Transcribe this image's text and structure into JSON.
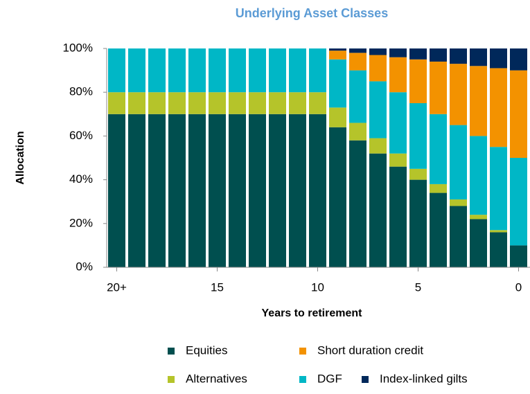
{
  "chart_data": {
    "type": "stacked_bar",
    "title": "Underlying Asset Classes",
    "x_label": "Years to retirement",
    "y_label": "Allocation",
    "categories": [
      "20+",
      null,
      null,
      null,
      null,
      "15",
      null,
      null,
      null,
      null,
      "10",
      null,
      null,
      null,
      null,
      "5",
      null,
      null,
      null,
      null,
      "0"
    ],
    "series": [
      {
        "name": "Equities",
        "color": "#004f4f",
        "values": [
          70,
          70,
          70,
          70,
          70,
          70,
          70,
          70,
          70,
          70,
          70,
          64,
          58,
          52,
          46,
          40,
          34,
          28,
          22,
          16,
          10
        ]
      },
      {
        "name": "Alternatives",
        "color": "#b5c42a",
        "values": [
          10,
          10,
          10,
          10,
          10,
          10,
          10,
          10,
          10,
          10,
          10,
          9,
          8,
          7,
          6,
          5,
          4,
          3,
          2,
          1,
          0
        ]
      },
      {
        "name": "DGF",
        "color": "#00b7c6",
        "values": [
          20,
          20,
          20,
          20,
          20,
          20,
          20,
          20,
          20,
          20,
          20,
          22,
          24,
          26,
          28,
          30,
          32,
          34,
          36,
          38,
          40
        ]
      },
      {
        "name": "Short duration credit",
        "color": "#f39200",
        "values": [
          0,
          0,
          0,
          0,
          0,
          0,
          0,
          0,
          0,
          0,
          0,
          4,
          8,
          12,
          16,
          20,
          24,
          28,
          32,
          36,
          40
        ]
      },
      {
        "name": "Index-linked gilts",
        "color": "#00285a",
        "values": [
          0,
          0,
          0,
          0,
          0,
          0,
          0,
          0,
          0,
          0,
          0,
          1,
          2,
          3,
          4,
          5,
          6,
          7,
          8,
          9,
          10
        ]
      }
    ],
    "ylim": [
      0,
      100
    ],
    "yticks": [
      {
        "value": 0,
        "label": "0%"
      },
      {
        "value": 20,
        "label": "20%"
      },
      {
        "value": 40,
        "label": "40%"
      },
      {
        "value": 60,
        "label": "60%"
      },
      {
        "value": 80,
        "label": "80%"
      },
      {
        "value": 100,
        "label": "100%"
      }
    ]
  }
}
